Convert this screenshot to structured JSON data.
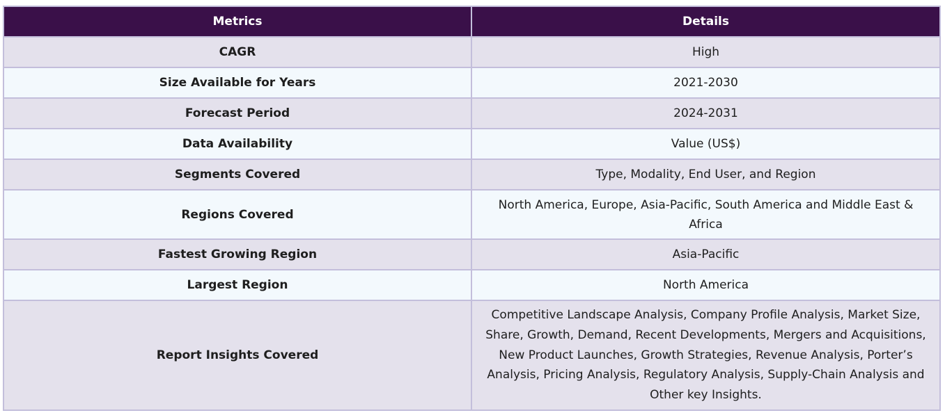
{
  "table": {
    "headers": [
      "Metrics",
      "Details"
    ],
    "rows": [
      {
        "metric": "CAGR",
        "detail": "High"
      },
      {
        "metric": "Size Available for Years",
        "detail": "2021-2030"
      },
      {
        "metric": "Forecast Period",
        "detail": "2024-2031"
      },
      {
        "metric": "Data Availability",
        "detail": "Value (US$)"
      },
      {
        "metric": "Segments Covered",
        "detail": "Type, Modality, End User, and Region"
      },
      {
        "metric": "Regions Covered",
        "detail": "North America, Europe, Asia-Pacific, South America and Middle East & Africa"
      },
      {
        "metric": "Fastest Growing Region",
        "detail": "Asia-Pacific"
      },
      {
        "metric": "Largest Region",
        "detail": "North America"
      },
      {
        "metric": "Report Insights Covered",
        "detail": "Competitive Landscape Analysis, Company Profile Analysis, Market Size, Share, Growth, Demand, Recent Developments, Mergers and Acquisitions, New Product Launches, Growth Strategies, Revenue Analysis, Porter’s Analysis, Pricing Analysis, Regulatory Analysis, Supply-Chain Analysis and Other key Insights."
      }
    ]
  },
  "colors": {
    "header_bg": "#3a1049",
    "row_odd_bg": "#e4e1ec",
    "row_even_bg": "#f3f9fd",
    "border": "#c3bedb"
  }
}
